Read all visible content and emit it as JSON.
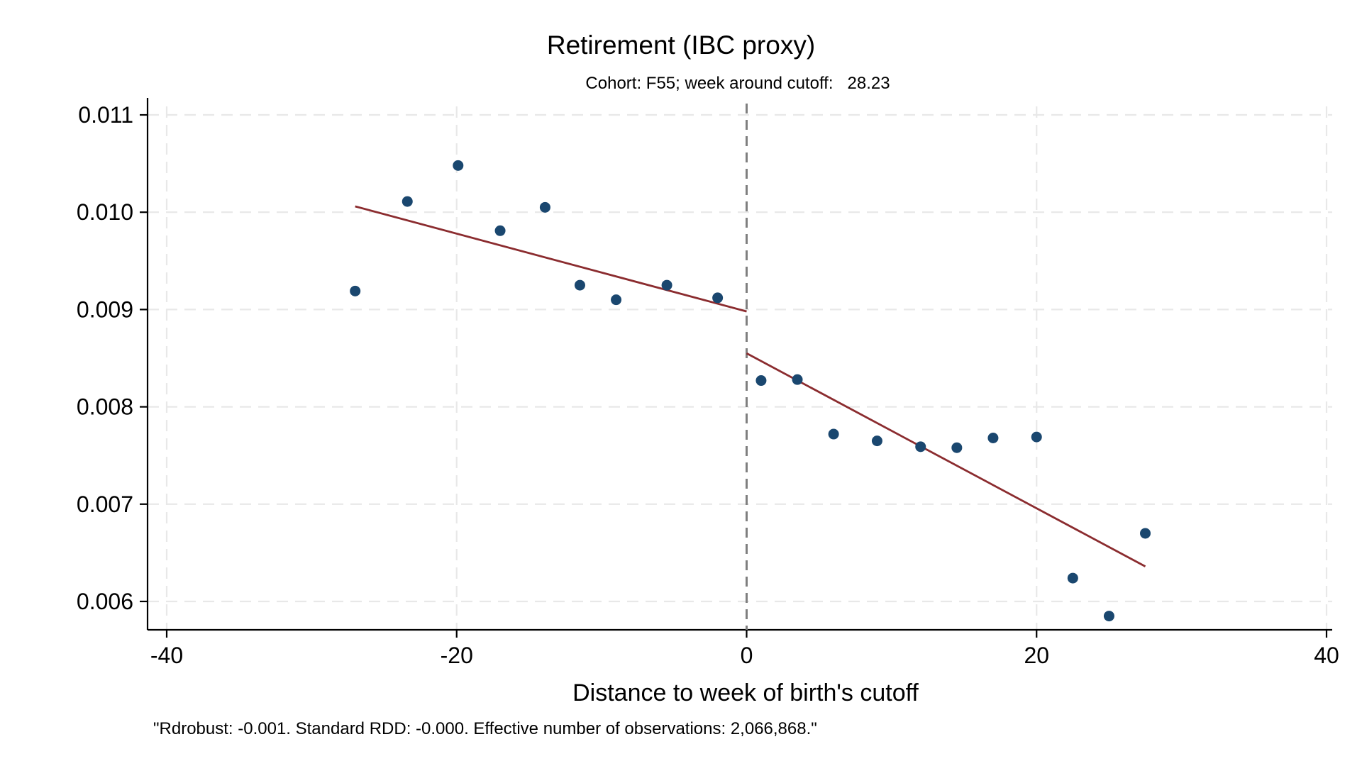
{
  "chart_data": {
    "type": "scatter",
    "title": "Retirement (IBC proxy)",
    "subtitle": "Cohort: F55; week around cutoff:   28.23",
    "xlabel": "Distance to week of birth's cutoff",
    "ylabel": "",
    "note": "\"Rdrobust: -0.001. Standard RDD: -0.000. Effective number of observations: 2,066,868.\"",
    "xlim": [
      -40,
      40
    ],
    "ylim": [
      0.006,
      0.011
    ],
    "xticks": [
      -40,
      -20,
      0,
      20,
      40
    ],
    "yticks": [
      0.006,
      0.007,
      0.008,
      0.009,
      0.01,
      0.011
    ],
    "xtick_labels": [
      "-40",
      "-20",
      "0",
      "20",
      "40"
    ],
    "ytick_labels": [
      "0.006",
      "0.007",
      "0.008",
      "0.009",
      "0.010",
      "0.011"
    ],
    "grid": true,
    "cutoff": 0,
    "colors": {
      "points": "#1a476f",
      "fit": "#8b2c2f",
      "cutoff": "#7f7f7f",
      "grid": "#e8e8e8"
    },
    "series": [
      {
        "kind": "scatter",
        "points": [
          {
            "x": -27.0,
            "y": 0.00919
          },
          {
            "x": -23.4,
            "y": 0.01011
          },
          {
            "x": -19.9,
            "y": 0.01048
          },
          {
            "x": -17.0,
            "y": 0.00981
          },
          {
            "x": -13.9,
            "y": 0.01005
          },
          {
            "x": -11.5,
            "y": 0.00925
          },
          {
            "x": -9.0,
            "y": 0.0091
          },
          {
            "x": -5.5,
            "y": 0.00925
          },
          {
            "x": -2.0,
            "y": 0.00912
          },
          {
            "x": 1.0,
            "y": 0.00827
          },
          {
            "x": 3.5,
            "y": 0.00828
          },
          {
            "x": 6.0,
            "y": 0.00772
          },
          {
            "x": 9.0,
            "y": 0.00765
          },
          {
            "x": 12.0,
            "y": 0.00759
          },
          {
            "x": 14.5,
            "y": 0.00758
          },
          {
            "x": 17.0,
            "y": 0.00768
          },
          {
            "x": 20.0,
            "y": 0.00769
          },
          {
            "x": 22.5,
            "y": 0.00624
          },
          {
            "x": 25.0,
            "y": 0.00585
          },
          {
            "x": 27.5,
            "y": 0.0067
          }
        ]
      },
      {
        "kind": "fit",
        "segment": "left",
        "points": [
          {
            "x": -27.0,
            "y": 0.01006
          },
          {
            "x": 0.0,
            "y": 0.00898
          }
        ]
      },
      {
        "kind": "fit",
        "segment": "right",
        "points": [
          {
            "x": 0.0,
            "y": 0.00855
          },
          {
            "x": 27.5,
            "y": 0.00636
          }
        ]
      }
    ]
  }
}
